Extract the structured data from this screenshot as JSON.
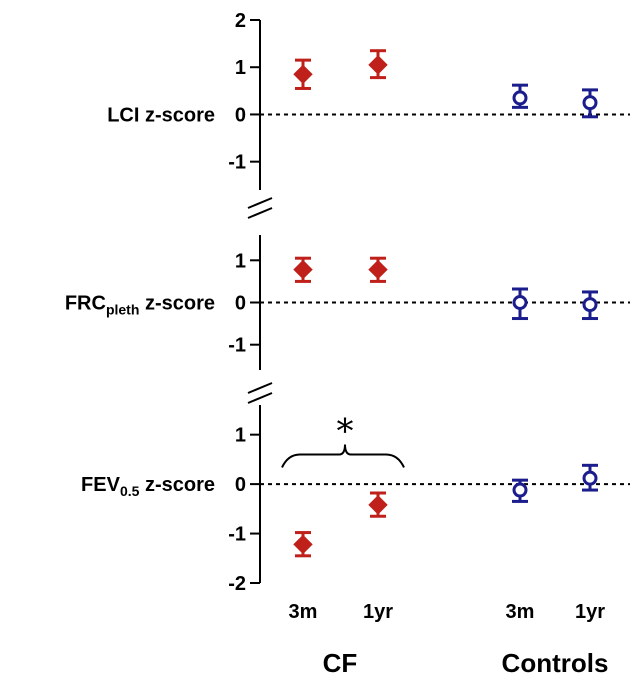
{
  "chart_data": {
    "type": "scatter",
    "groups": [
      "CF",
      "Controls"
    ],
    "categories": [
      "3m",
      "1yr",
      "3m",
      "1yr"
    ],
    "colors": {
      "CF": "#c0201a",
      "Controls": "#1c1d8c"
    },
    "panels": [
      {
        "label_main": "LCI z-score",
        "label_sub": "",
        "label_tail": "",
        "ylim": [
          -1.6,
          2.0
        ],
        "yticks": [
          "2",
          "1",
          "0",
          "-1"
        ],
        "ytick_values": [
          2,
          1,
          0,
          -1
        ],
        "points": [
          {
            "group": "CF",
            "category": "3m",
            "mean": 0.85,
            "low": 0.55,
            "high": 1.15
          },
          {
            "group": "CF",
            "category": "1yr",
            "mean": 1.05,
            "low": 0.78,
            "high": 1.35
          },
          {
            "group": "Controls",
            "category": "3m",
            "mean": 0.35,
            "low": 0.15,
            "high": 0.62
          },
          {
            "group": "Controls",
            "category": "1yr",
            "mean": 0.25,
            "low": -0.05,
            "high": 0.52
          }
        ]
      },
      {
        "label_main": "FRC",
        "label_sub": "pleth",
        "label_tail": " z-score",
        "ylim": [
          -1.6,
          1.6
        ],
        "yticks": [
          "1",
          "0",
          "-1"
        ],
        "ytick_values": [
          1,
          0,
          -1
        ],
        "points": [
          {
            "group": "CF",
            "category": "3m",
            "mean": 0.78,
            "low": 0.5,
            "high": 1.05
          },
          {
            "group": "CF",
            "category": "1yr",
            "mean": 0.78,
            "low": 0.5,
            "high": 1.05
          },
          {
            "group": "Controls",
            "category": "3m",
            "mean": 0.0,
            "low": -0.38,
            "high": 0.32
          },
          {
            "group": "Controls",
            "category": "1yr",
            "mean": -0.05,
            "low": -0.38,
            "high": 0.25
          }
        ]
      },
      {
        "label_main": "FEV",
        "label_sub": "0.5",
        "label_tail": " z-score",
        "ylim": [
          -2.0,
          1.6
        ],
        "yticks": [
          "1",
          "0",
          "-1",
          "-2"
        ],
        "ytick_values": [
          1,
          0,
          -1,
          -2
        ],
        "significance": {
          "from_category": "3m",
          "to_category": "1yr",
          "group": "CF",
          "mark": "*"
        },
        "points": [
          {
            "group": "CF",
            "category": "3m",
            "mean": -1.22,
            "low": -1.45,
            "high": -0.98
          },
          {
            "group": "CF",
            "category": "1yr",
            "mean": -0.42,
            "low": -0.65,
            "high": -0.18
          },
          {
            "group": "Controls",
            "category": "3m",
            "mean": -0.12,
            "low": -0.35,
            "high": 0.08
          },
          {
            "group": "Controls",
            "category": "1yr",
            "mean": 0.12,
            "low": -0.12,
            "high": 0.38
          }
        ]
      }
    ]
  }
}
